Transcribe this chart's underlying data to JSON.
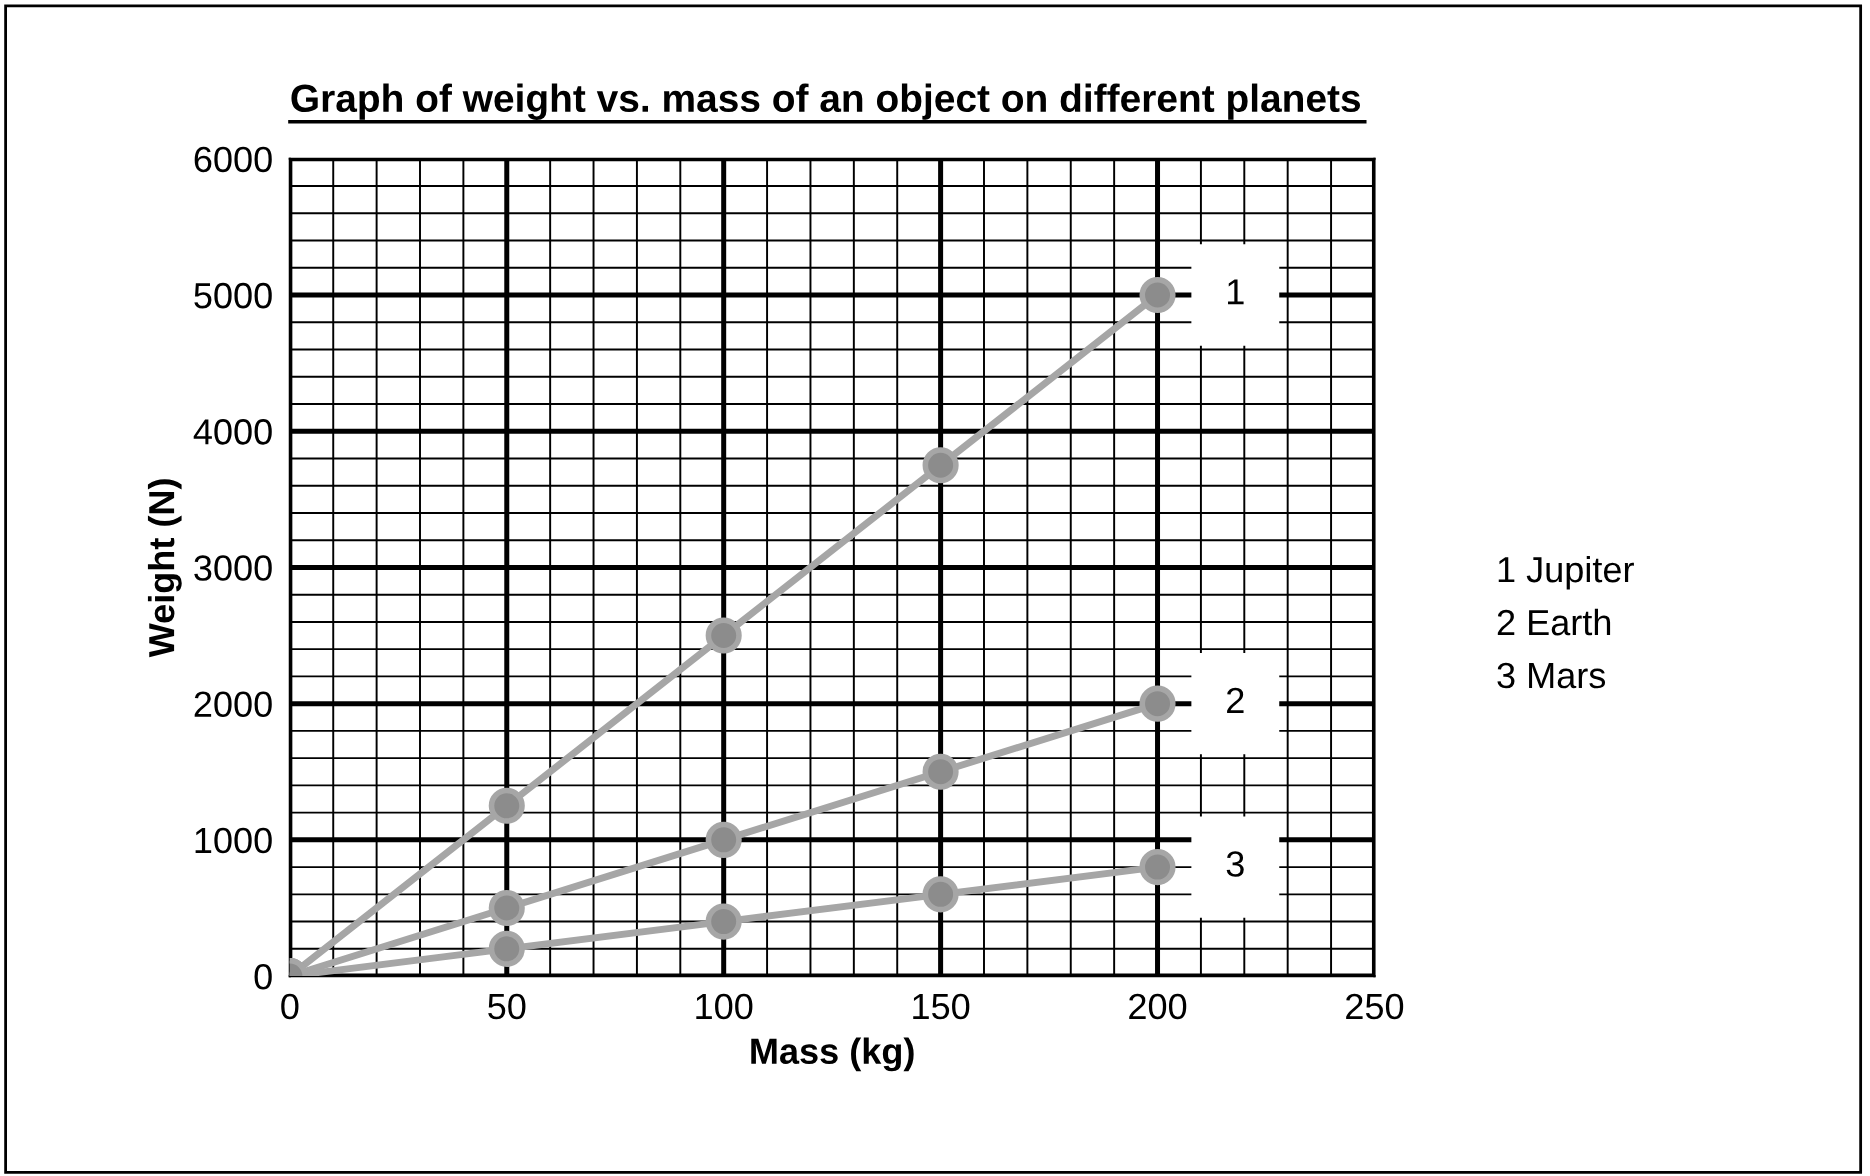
{
  "chart_data": {
    "type": "line",
    "title": "Graph of weight vs. mass of an object on different planets",
    "xlabel": "Mass (kg)",
    "ylabel": "Weight (N)",
    "x": [
      0,
      50,
      100,
      150,
      200
    ],
    "series": [
      {
        "name": "1",
        "color": "#a6a6a6",
        "values": [
          0,
          1250,
          2500,
          3750,
          5000
        ]
      },
      {
        "name": "2",
        "color": "#a6a6a6",
        "values": [
          0,
          500,
          1000,
          1500,
          2000
        ]
      },
      {
        "name": "3",
        "color": "#a6a6a6",
        "values": [
          0,
          200,
          400,
          600,
          800
        ]
      }
    ],
    "annotations": [
      "1 Jupiter",
      "2 Earth",
      "3 Mars"
    ],
    "xlim": [
      0,
      250
    ],
    "ylim": [
      0,
      6000
    ],
    "xticks": [
      0,
      50,
      100,
      150,
      200,
      250
    ],
    "yticks": [
      0,
      1000,
      2000,
      3000,
      4000,
      5000,
      6000
    ],
    "grid": true,
    "marker": "circle",
    "line_style": "solid",
    "legend": false
  }
}
